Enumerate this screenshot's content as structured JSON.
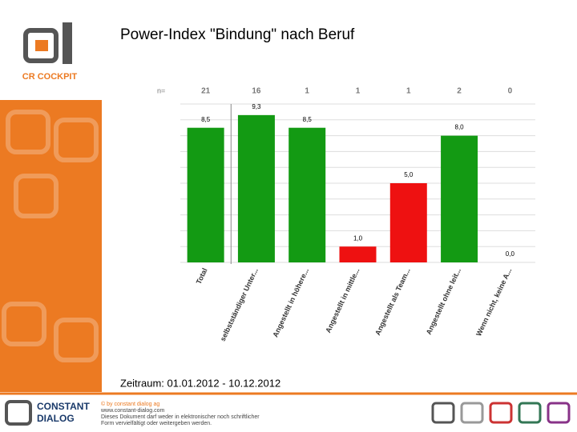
{
  "slide": {
    "title": "Power-Index \"Bindung\" nach Beruf",
    "period": "Zeitraum: 01.01.2012 - 10.12.2012",
    "logo_text": "CR COCKPIT",
    "footer": {
      "brand_line1": "CONSTANT",
      "brand_line2": "DIALOG",
      "lines": [
        "© by constant dialog ag",
        "www.constant-dialog.com",
        "Dieses Dokument darf weder in elektronischer noch schriftlicher",
        "Form vervielfältigt oder weitergeben werden."
      ]
    }
  },
  "chart_data": {
    "type": "bar",
    "n_label": "n=",
    "n_values": [
      21,
      16,
      1,
      1,
      1,
      2,
      0
    ],
    "categories": [
      "Total",
      "selbstständiger Unter...",
      "Angestellt in höhere...",
      "Angestellt in mittle...",
      "Angestellt als Team...",
      "Angestellt ohne leit...",
      "Wenn nicht, keine A..."
    ],
    "values": [
      8.5,
      9.3,
      8.5,
      1.0,
      5.0,
      8.0,
      0.0
    ],
    "value_labels": [
      "8,5",
      "9,3",
      "8,5",
      "1,0",
      "5,0",
      "8,0",
      "0,0"
    ],
    "colors": [
      "#139a13",
      "#139a13",
      "#139a13",
      "#ee1111",
      "#ee1111",
      "#139a13",
      "#139a13"
    ],
    "ylim": [
      0,
      10
    ],
    "yticks": [
      0,
      1,
      2,
      3,
      4,
      5,
      6,
      7,
      8,
      9,
      10
    ],
    "grid": true
  }
}
